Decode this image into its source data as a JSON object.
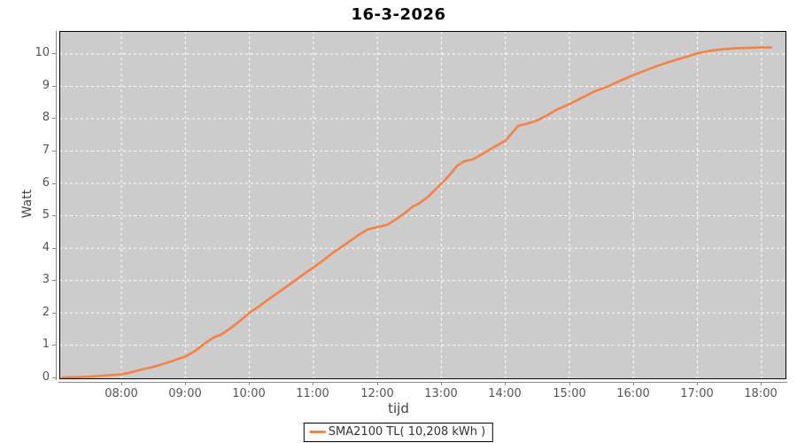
{
  "chart_data": {
    "type": "line",
    "title": "16-3-2026",
    "xlabel": "tijd",
    "ylabel": "Watt",
    "x_domain_hours": [
      7.03,
      18.39
    ],
    "y_domain": [
      -0.05,
      10.71
    ],
    "x_ticks": [
      {
        "t": 8,
        "label": "08:00"
      },
      {
        "t": 9,
        "label": "09:00"
      },
      {
        "t": 10,
        "label": "10:00"
      },
      {
        "t": 11,
        "label": "11:00"
      },
      {
        "t": 12,
        "label": "12:00"
      },
      {
        "t": 13,
        "label": "13:00"
      },
      {
        "t": 14,
        "label": "14:00"
      },
      {
        "t": 15,
        "label": "15:00"
      },
      {
        "t": 16,
        "label": "16:00"
      },
      {
        "t": 17,
        "label": "17:00"
      },
      {
        "t": 18,
        "label": "18:00"
      }
    ],
    "y_ticks": [
      "0",
      "1",
      "2",
      "3",
      "4",
      "5",
      "6",
      "7",
      "8",
      "9",
      "10"
    ],
    "grid": {
      "shown": true,
      "style": "dashed",
      "color": "#ffffff"
    },
    "legend": {
      "position": "bottom-center",
      "entries": [
        {
          "label": "SMA2100 TL( 10,208 kWh )",
          "color": "#f88142"
        }
      ]
    },
    "series": [
      {
        "name": "SMA2100 TL",
        "color": "#f88142",
        "points": [
          [
            7.08,
            0.0
          ],
          [
            7.2,
            0.01
          ],
          [
            7.4,
            0.02
          ],
          [
            7.6,
            0.04
          ],
          [
            7.8,
            0.07
          ],
          [
            8.0,
            0.1
          ],
          [
            8.15,
            0.16
          ],
          [
            8.3,
            0.24
          ],
          [
            8.5,
            0.33
          ],
          [
            8.7,
            0.45
          ],
          [
            8.85,
            0.55
          ],
          [
            9.0,
            0.65
          ],
          [
            9.15,
            0.82
          ],
          [
            9.3,
            1.05
          ],
          [
            9.45,
            1.25
          ],
          [
            9.55,
            1.32
          ],
          [
            9.7,
            1.52
          ],
          [
            9.85,
            1.75
          ],
          [
            10.0,
            2.0
          ],
          [
            10.15,
            2.2
          ],
          [
            10.3,
            2.42
          ],
          [
            10.5,
            2.7
          ],
          [
            10.7,
            2.98
          ],
          [
            10.85,
            3.2
          ],
          [
            11.0,
            3.4
          ],
          [
            11.15,
            3.62
          ],
          [
            11.3,
            3.85
          ],
          [
            11.5,
            4.12
          ],
          [
            11.7,
            4.4
          ],
          [
            11.85,
            4.58
          ],
          [
            12.0,
            4.65
          ],
          [
            12.15,
            4.72
          ],
          [
            12.3,
            4.9
          ],
          [
            12.45,
            5.12
          ],
          [
            12.55,
            5.28
          ],
          [
            12.65,
            5.38
          ],
          [
            12.8,
            5.6
          ],
          [
            12.9,
            5.8
          ],
          [
            13.0,
            6.0
          ],
          [
            13.1,
            6.2
          ],
          [
            13.25,
            6.55
          ],
          [
            13.35,
            6.68
          ],
          [
            13.5,
            6.75
          ],
          [
            13.65,
            6.92
          ],
          [
            13.8,
            7.1
          ],
          [
            14.0,
            7.32
          ],
          [
            14.1,
            7.55
          ],
          [
            14.2,
            7.78
          ],
          [
            14.35,
            7.85
          ],
          [
            14.5,
            7.95
          ],
          [
            14.65,
            8.1
          ],
          [
            14.8,
            8.28
          ],
          [
            15.0,
            8.45
          ],
          [
            15.2,
            8.65
          ],
          [
            15.4,
            8.85
          ],
          [
            15.6,
            9.0
          ],
          [
            15.8,
            9.18
          ],
          [
            16.0,
            9.35
          ],
          [
            16.2,
            9.5
          ],
          [
            16.4,
            9.65
          ],
          [
            16.6,
            9.78
          ],
          [
            16.8,
            9.9
          ],
          [
            17.0,
            10.02
          ],
          [
            17.2,
            10.1
          ],
          [
            17.4,
            10.15
          ],
          [
            17.6,
            10.18
          ],
          [
            17.8,
            10.19
          ],
          [
            18.0,
            10.2
          ],
          [
            18.15,
            10.2
          ]
        ]
      }
    ]
  },
  "colors": {
    "plot_background": "#cccccc",
    "gridline": "#ffffff",
    "axis_line": "#8a8a8a",
    "tick_text": "#555555",
    "title_text": "#000000",
    "series_line": "#f88142",
    "plot_border": "#000000",
    "page_background": "#ffffff"
  }
}
